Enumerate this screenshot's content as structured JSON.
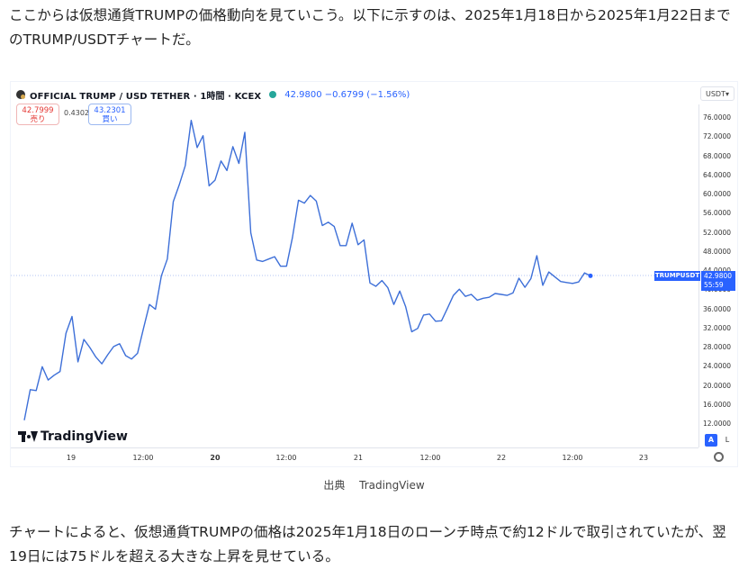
{
  "article": {
    "intro": "ここからは仮想通貨TRUMPの価格動向を見ていこう。以下に示すのは、2025年1月18日から2025年1月22日までのTRUMP/USDTチャートだ。",
    "caption_label": "出典",
    "caption_source": "TradingView",
    "outro": "チャートによると、仮想通貨TRUMPの価格は2025年1月18日のローンチ時点で約12ドルで取引されていたが、翌19日には75ドルを超える大きな上昇を見せている。"
  },
  "widget": {
    "title": "OFFICIAL TRUMP / USD TETHER · 1時間 · KCEX",
    "quote": "42.9800 −0.6799 (−1.56%)",
    "sell_price": "42.7999",
    "sell_label": "売り",
    "spread": "0.4302",
    "buy_price": "43.2301",
    "buy_label": "買い",
    "currency": "USDT",
    "currency_chevron": "chevron-down-icon",
    "price_tag_symbol": "TRUMPUSDT",
    "price_tag_value": "42.9800",
    "price_tag_countdown": "55:59",
    "logo_text": "TradingView",
    "scale_auto": "A",
    "scale_log": "L",
    "accent_color": "#2962ff",
    "line_color": "#3d6fd8",
    "settings_icon": "gear-icon"
  },
  "chart_data": {
    "type": "line",
    "series": [
      {
        "values": [
          12.8,
          19.2,
          19.0,
          24.0,
          21.2,
          22.2,
          23.0,
          31.0,
          34.5,
          25.0,
          29.7,
          28.0,
          26.0,
          24.6,
          26.5,
          28.2,
          28.8,
          26.3,
          25.6,
          26.8,
          32.0,
          37.0,
          36.0,
          43.0,
          46.5,
          58.5,
          62.0,
          66.0,
          75.5,
          69.8,
          72.3,
          61.8,
          63.0,
          67.0,
          65.0,
          70.0,
          66.5,
          73.0,
          52.0,
          46.3,
          46.0,
          46.5,
          47.0,
          45.0,
          45.0,
          51.0,
          58.8,
          58.2,
          59.8,
          58.6,
          53.5,
          54.2,
          53.3,
          49.3,
          49.3,
          54.0,
          49.5,
          50.5,
          41.5,
          40.8,
          42.0,
          40.5,
          37.0,
          39.8,
          36.5,
          31.3,
          32.0,
          34.8,
          35.0,
          33.5,
          33.6,
          36.2,
          38.9,
          40.2,
          38.7,
          39.1,
          37.9,
          38.3,
          38.5,
          39.3,
          39.1,
          38.9,
          39.4,
          42.5,
          40.6,
          42.4,
          47.2,
          41.0,
          43.8,
          42.8,
          41.8,
          41.6,
          41.4,
          41.7,
          43.6,
          42.98
        ]
      }
    ],
    "y_ticks": [
      "76.0000",
      "72.0000",
      "68.0000",
      "64.0000",
      "60.0000",
      "56.0000",
      "52.0000",
      "48.0000",
      "44.0000",
      "40.0000",
      "36.0000",
      "32.0000",
      "28.0000",
      "24.0000",
      "20.0000",
      "16.0000",
      "12.0000"
    ],
    "x_ticks": [
      "19",
      "12:00",
      "20",
      "12:00",
      "21",
      "12:00",
      "22",
      "12:00",
      "23"
    ],
    "last_value": 42.98,
    "grid": false
  }
}
